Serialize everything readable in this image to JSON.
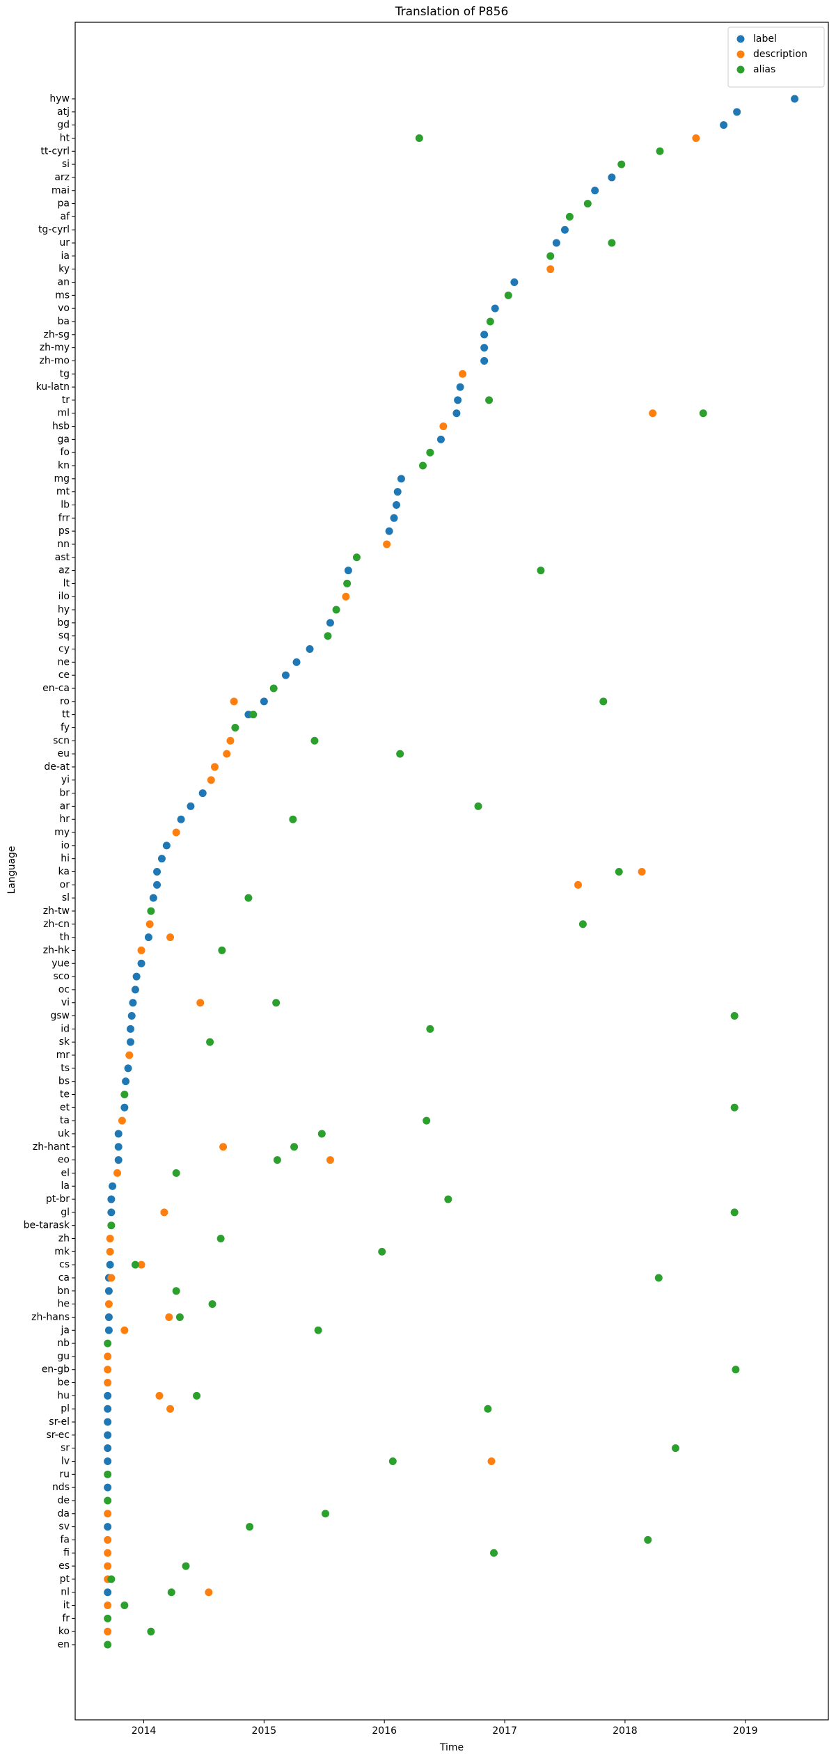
{
  "chart_data": {
    "type": "scatter",
    "title": "Translation of P856",
    "x_label": "Time",
    "y_label": "Language",
    "xlim": [
      2013.43,
      2019.69
    ],
    "xticks": [
      2014,
      2015,
      2016,
      2017,
      2018,
      2019
    ],
    "legend": "upper right",
    "categories": [
      "en",
      "ko",
      "fr",
      "it",
      "nl",
      "pt",
      "es",
      "fi",
      "fa",
      "sv",
      "da",
      "de",
      "nds",
      "ru",
      "lv",
      "sr",
      "sr-ec",
      "sr-el",
      "pl",
      "hu",
      "be",
      "en-gb",
      "gu",
      "nb",
      "ja",
      "zh-hans",
      "he",
      "bn",
      "ca",
      "cs",
      "mk",
      "zh",
      "be-tarask",
      "gl",
      "pt-br",
      "la",
      "el",
      "eo",
      "zh-hant",
      "uk",
      "ta",
      "et",
      "te",
      "bs",
      "ts",
      "mr",
      "sk",
      "id",
      "gsw",
      "vi",
      "oc",
      "sco",
      "yue",
      "zh-hk",
      "th",
      "zh-cn",
      "zh-tw",
      "sl",
      "or",
      "ka",
      "hi",
      "io",
      "my",
      "hr",
      "ar",
      "br",
      "yi",
      "de-at",
      "eu",
      "scn",
      "fy",
      "tt",
      "ro",
      "en-ca",
      "ce",
      "ne",
      "cy",
      "sq",
      "bg",
      "hy",
      "ilo",
      "lt",
      "az",
      "ast",
      "nn",
      "ps",
      "frr",
      "lb",
      "mt",
      "mg",
      "kn",
      "fo",
      "ga",
      "hsb",
      "ml",
      "tr",
      "ku-latn",
      "tg",
      "zh-mo",
      "zh-my",
      "zh-sg",
      "ba",
      "vo",
      "ms",
      "an",
      "ky",
      "ia",
      "ur",
      "tg-cyrl",
      "af",
      "pa",
      "mai",
      "arz",
      "si",
      "tt-cyrl",
      "ht",
      "gd",
      "atj",
      "hyw"
    ],
    "series": [
      {
        "name": "label",
        "color": "#1f77b4",
        "x": [
          2019.41,
          2018.93,
          2018.82,
          2017.89,
          2017.75,
          2017.5,
          2017.43,
          2017.08,
          2016.92,
          2016.83,
          2016.83,
          2016.83,
          2016.63,
          2016.61,
          2016.6,
          2016.47,
          2016.14,
          2016.11,
          2016.1,
          2016.08,
          2016.04,
          2015.7,
          2015.55,
          2015.38,
          2015.27,
          2015.18,
          2015.0,
          2014.87,
          2014.49,
          2014.39,
          2014.31,
          2014.19,
          2014.15,
          2014.11,
          2014.11,
          2014.08,
          2014.04,
          2013.98,
          2013.94,
          2013.93,
          2013.91,
          2013.9,
          2013.89,
          2013.89,
          2013.87,
          2013.85,
          2013.84,
          2013.79,
          2013.79,
          2013.79,
          2013.74,
          2013.73,
          2013.73,
          2013.72,
          2013.71,
          2013.71,
          2013.71,
          2013.71,
          2013.7,
          2013.7,
          2013.7,
          2013.7,
          2013.7,
          2013.7,
          2013.7,
          2013.7,
          2013.7
        ],
        "y": [
          "hyw",
          "atj",
          "gd",
          "arz",
          "mai",
          "tg-cyrl",
          "ur",
          "an",
          "vo",
          "zh-sg",
          "zh-my",
          "zh-mo",
          "ku-latn",
          "tr",
          "ml",
          "ga",
          "mg",
          "mt",
          "lb",
          "frr",
          "ps",
          "az",
          "bg",
          "cy",
          "ne",
          "ce",
          "ro",
          "tt",
          "br",
          "ar",
          "hr",
          "io",
          "hi",
          "ka",
          "or",
          "sl",
          "th",
          "yue",
          "sco",
          "oc",
          "vi",
          "gsw",
          "id",
          "sk",
          "ts",
          "bs",
          "et",
          "uk",
          "zh-hant",
          "eo",
          "la",
          "pt-br",
          "gl",
          "cs",
          "ca",
          "bn",
          "zh-hans",
          "ja",
          "hu",
          "pl",
          "sr-el",
          "sr-ec",
          "sr",
          "lv",
          "nds",
          "sv",
          "nl"
        ]
      },
      {
        "name": "description",
        "color": "#ff7f0e",
        "x": [
          2018.59,
          2017.38,
          2016.65,
          2018.23,
          2016.49,
          2016.02,
          2015.68,
          2014.75,
          2014.72,
          2014.69,
          2014.59,
          2014.56,
          2014.27,
          2018.14,
          2017.61,
          2014.05,
          2014.22,
          2013.98,
          2014.47,
          2013.88,
          2013.82,
          2014.66,
          2015.55,
          2013.78,
          2014.17,
          2013.72,
          2013.72,
          2013.98,
          2013.73,
          2013.71,
          2014.21,
          2013.84,
          2013.7,
          2013.7,
          2013.7,
          2014.13,
          2014.22,
          2016.89,
          2013.7,
          2013.7,
          2013.7,
          2013.7,
          2013.7,
          2014.54,
          2013.7,
          2013.7
        ],
        "y": [
          "ht",
          "ky",
          "tg",
          "ml",
          "hsb",
          "nn",
          "ilo",
          "ro",
          "scn",
          "eu",
          "de-at",
          "yi",
          "my",
          "ka",
          "or",
          "zh-cn",
          "th",
          "zh-hk",
          "vi",
          "mr",
          "ta",
          "zh-hant",
          "eo",
          "el",
          "gl",
          "zh",
          "mk",
          "cs",
          "ca",
          "he",
          "zh-hans",
          "ja",
          "gu",
          "en-gb",
          "be",
          "hu",
          "pl",
          "lv",
          "da",
          "fa",
          "fi",
          "es",
          "pt",
          "nl",
          "it",
          "ko"
        ]
      },
      {
        "name": "alias",
        "color": "#2ca02c",
        "x": [
          2016.29,
          2018.29,
          2017.97,
          2017.69,
          2017.54,
          2017.89,
          2017.38,
          2017.03,
          2016.88,
          2016.87,
          2018.65,
          2016.38,
          2016.32,
          2015.77,
          2017.3,
          2015.69,
          2015.6,
          2015.53,
          2015.08,
          2017.82,
          2014.91,
          2014.76,
          2015.42,
          2016.13,
          2016.78,
          2015.24,
          2017.95,
          2014.87,
          2014.06,
          2017.65,
          2014.65,
          2015.1,
          2018.91,
          2016.38,
          2014.55,
          2013.84,
          2018.91,
          2016.35,
          2015.48,
          2015.25,
          2015.11,
          2014.27,
          2016.53,
          2018.91,
          2013.73,
          2014.64,
          2015.98,
          2013.93,
          2018.28,
          2014.27,
          2014.57,
          2014.3,
          2015.45,
          2013.7,
          2018.92,
          2014.44,
          2016.86,
          2018.42,
          2016.07,
          2013.7,
          2013.7,
          2015.51,
          2014.88,
          2018.19,
          2016.91,
          2014.35,
          2013.73,
          2014.23,
          2013.84,
          2013.7,
          2014.06,
          2013.7
        ],
        "y": [
          "ht",
          "tt-cyrl",
          "si",
          "pa",
          "af",
          "ur",
          "ia",
          "ms",
          "ba",
          "tr",
          "ml",
          "fo",
          "kn",
          "ast",
          "az",
          "lt",
          "hy",
          "sq",
          "en-ca",
          "ro",
          "tt",
          "fy",
          "scn",
          "eu",
          "ar",
          "hr",
          "ka",
          "sl",
          "zh-tw",
          "zh-cn",
          "zh-hk",
          "vi",
          "gsw",
          "id",
          "sk",
          "te",
          "et",
          "ta",
          "uk",
          "zh-hant",
          "eo",
          "el",
          "pt-br",
          "gl",
          "be-tarask",
          "zh",
          "mk",
          "cs",
          "ca",
          "bn",
          "he",
          "zh-hans",
          "ja",
          "nb",
          "en-gb",
          "hu",
          "pl",
          "sr",
          "lv",
          "ru",
          "de",
          "da",
          "sv",
          "fa",
          "fi",
          "es",
          "pt",
          "nl",
          "it",
          "fr",
          "ko",
          "en"
        ]
      }
    ]
  }
}
